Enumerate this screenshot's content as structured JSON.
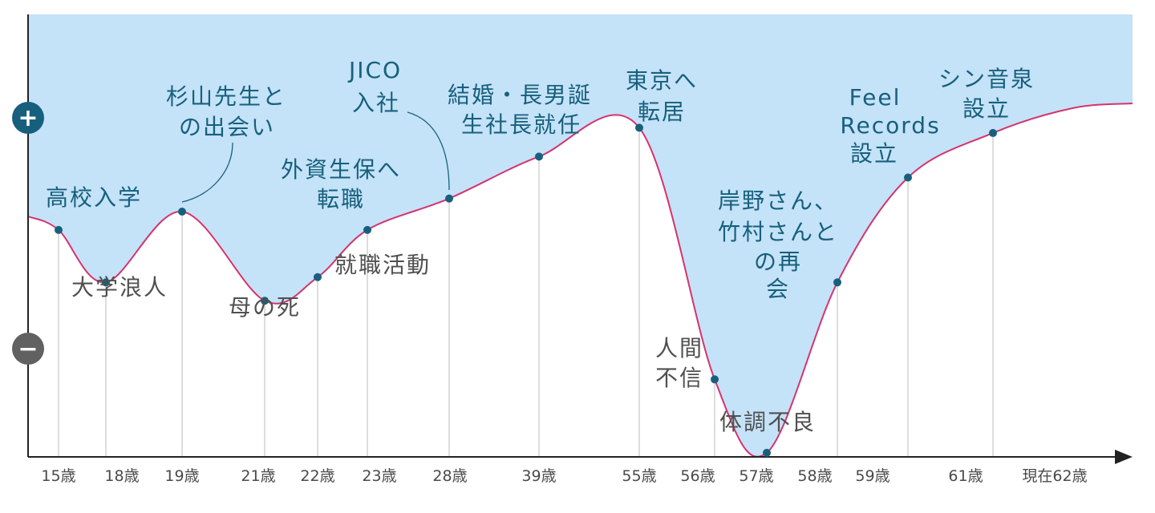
{
  "chart_data": {
    "type": "line",
    "colors": {
      "fill": "#c4e2f8",
      "curve": "#d6336c",
      "point": "#17607d",
      "positive_text": "#17607d",
      "negative_text": "#505050",
      "axis": "#222222",
      "guide": "#bbbbbb",
      "plus_badge": "#17607d",
      "minus_badge": "#616161"
    },
    "y_symbols": {
      "plus": "+",
      "minus": "−"
    },
    "x_ticks": [
      "15歳",
      "18歳",
      "19歳",
      "21歳",
      "22歳",
      "23歳",
      "28歳",
      "39歳",
      "55歳",
      "56歳",
      "57歳",
      "58歳",
      "59歳",
      "61歳",
      "現在62歳"
    ],
    "events": [
      {
        "label": "高校入学",
        "age": "15歳",
        "value": 0.3,
        "sign": "positive"
      },
      {
        "label": "大学浪人",
        "age": "18歳",
        "value": 0.1,
        "sign": "negative"
      },
      {
        "label": "杉山先生との出会い",
        "age": "19歳",
        "value": 0.37,
        "sign": "positive"
      },
      {
        "label": "母の死",
        "age": "21歳",
        "value": 0.03,
        "sign": "negative"
      },
      {
        "label": "就職活動",
        "age": "22歳",
        "value": 0.12,
        "sign": "negative"
      },
      {
        "label": "外資生保へ転職",
        "age": "23歳",
        "value": 0.3,
        "sign": "positive"
      },
      {
        "label": "JICO入社",
        "age": "28歳",
        "value": 0.42,
        "sign": "positive"
      },
      {
        "label": "結婚・長男誕生社長就任",
        "age": "39歳",
        "value": 0.58,
        "sign": "positive"
      },
      {
        "label": "東京へ転居",
        "age": "55歳",
        "value": 0.69,
        "sign": "positive"
      },
      {
        "label": "人間不信",
        "age": "56歳",
        "value": -0.27,
        "sign": "negative"
      },
      {
        "label": "体調不良",
        "age": "57歳",
        "value": -0.55,
        "sign": "negative"
      },
      {
        "label": "岸野さん、竹村さんとの再会",
        "age": "58歳",
        "value": 0.1,
        "sign": "positive"
      },
      {
        "label": "FeelRecords設立",
        "age": "59歳",
        "value": 0.5,
        "sign": "positive"
      },
      {
        "label": "シン音泉設立",
        "age": "61歳",
        "value": 0.67,
        "sign": "positive"
      }
    ]
  }
}
